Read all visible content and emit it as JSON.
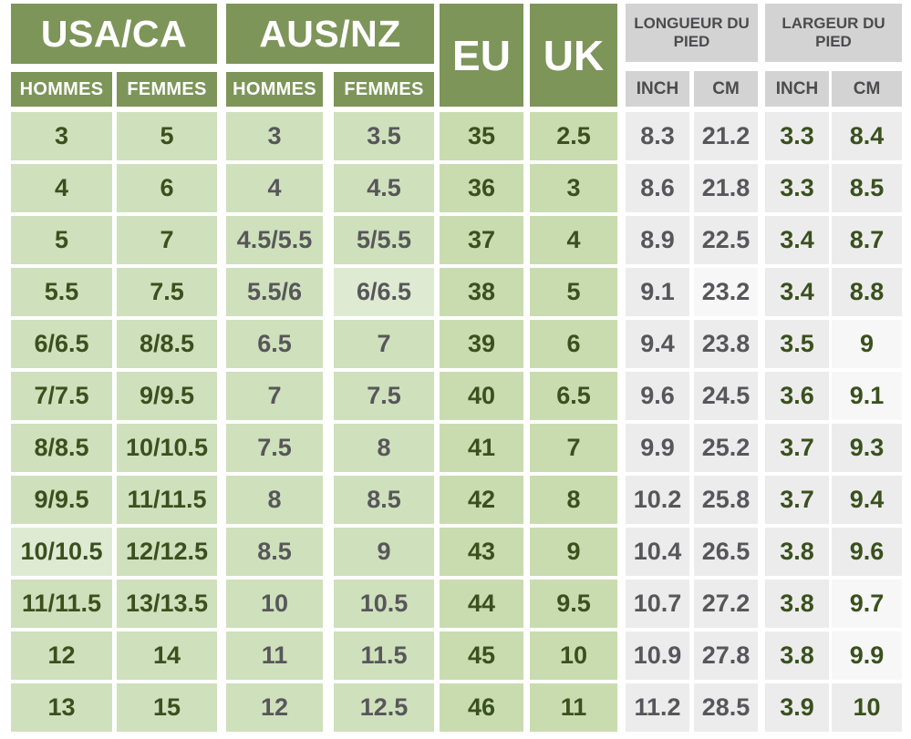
{
  "chart_data": {
    "type": "table",
    "column_groups": [
      {
        "label": "USA/CA",
        "sub": [
          "HOMMES",
          "FEMMES"
        ]
      },
      {
        "label": "AUS/NZ",
        "sub": [
          "HOMMES",
          "FEMMES"
        ]
      },
      {
        "label": "EU",
        "sub": []
      },
      {
        "label": "UK",
        "sub": []
      },
      {
        "label": "LONGUEUR DU PIED",
        "sub": [
          "INCH",
          "CM"
        ]
      },
      {
        "label": "LARGEUR DU PIED",
        "sub": [
          "INCH",
          "CM"
        ]
      }
    ],
    "columns": [
      "USA/CA HOMMES",
      "USA/CA FEMMES",
      "AUS/NZ HOMMES",
      "AUS/NZ FEMMES",
      "EU",
      "UK",
      "LONGUEUR DU PIED INCH",
      "LONGUEUR DU PIED CM",
      "LARGEUR DU PIED INCH",
      "LARGEUR DU PIED CM"
    ],
    "rows": [
      [
        "3",
        "5",
        "3",
        "3.5",
        "35",
        "2.5",
        "8.3",
        "21.2",
        "3.3",
        "8.4"
      ],
      [
        "4",
        "6",
        "4",
        "4.5",
        "36",
        "3",
        "8.6",
        "21.8",
        "3.3",
        "8.5"
      ],
      [
        "5",
        "7",
        "4.5/5.5",
        "5/5.5",
        "37",
        "4",
        "8.9",
        "22.5",
        "3.4",
        "8.7"
      ],
      [
        "5.5",
        "7.5",
        "5.5/6",
        "6/6.5",
        "38",
        "5",
        "9.1",
        "23.2",
        "3.4",
        "8.8"
      ],
      [
        "6/6.5",
        "8/8.5",
        "6.5",
        "7",
        "39",
        "6",
        "9.4",
        "23.8",
        "3.5",
        "9"
      ],
      [
        "7/7.5",
        "9/9.5",
        "7",
        "7.5",
        "40",
        "6.5",
        "9.6",
        "24.5",
        "3.6",
        "9.1"
      ],
      [
        "8/8.5",
        "10/10.5",
        "7.5",
        "8",
        "41",
        "7",
        "9.9",
        "25.2",
        "3.7",
        "9.3"
      ],
      [
        "9/9.5",
        "11/11.5",
        "8",
        "8.5",
        "42",
        "8",
        "10.2",
        "25.8",
        "3.7",
        "9.4"
      ],
      [
        "10/10.5",
        "12/12.5",
        "8.5",
        "9",
        "43",
        "9",
        "10.4",
        "26.5",
        "3.8",
        "9.6"
      ],
      [
        "11/11.5",
        "13/13.5",
        "10",
        "10.5",
        "44",
        "9.5",
        "10.7",
        "27.2",
        "3.8",
        "9.7"
      ],
      [
        "12",
        "14",
        "11",
        "11.5",
        "45",
        "10",
        "10.9",
        "27.8",
        "3.8",
        "9.9"
      ],
      [
        "13",
        "15",
        "12",
        "12.5",
        "46",
        "11",
        "11.2",
        "28.5",
        "3.9",
        "10"
      ]
    ]
  },
  "visual": {
    "header_green": "#7d9559",
    "cell_green": "#cfe0bc",
    "cell_green_euuk": "#c9dcb0",
    "cell_green_light": "#dfead3",
    "header_gray": "#d3d3d3",
    "cell_gray": "#ececec",
    "cell_gray_light": "#f7f7f7",
    "text_green": "#3a501e",
    "text_gray": "#57575a",
    "text_header_gray": "#4c4c4e",
    "light_cells": [
      [
        3,
        3
      ],
      [
        3,
        7
      ],
      [
        4,
        9
      ],
      [
        5,
        9
      ],
      [
        8,
        0
      ],
      [
        9,
        9
      ],
      [
        10,
        9
      ]
    ]
  }
}
